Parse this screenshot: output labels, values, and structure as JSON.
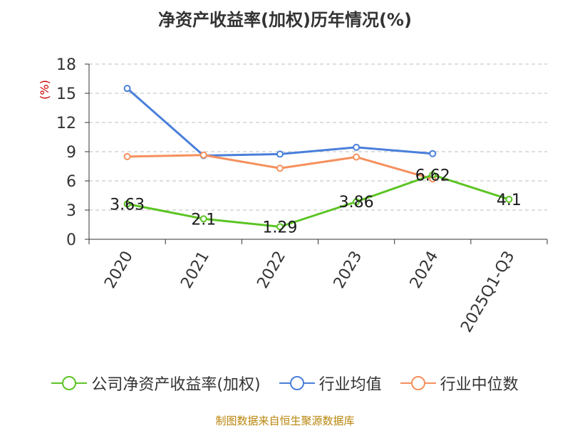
{
  "title": "净资产收益率(加权)历年情况(%)",
  "source": "制图数据来自恒生聚源数据库",
  "chart_data": {
    "type": "line",
    "title": "净资产收益率(加权)历年情况(%)",
    "ylabel": "(%)",
    "xlabel": "",
    "categories": [
      "2020",
      "2021",
      "2022",
      "2023",
      "2024",
      "2025Q1-Q3"
    ],
    "yticks": [
      0,
      3,
      6,
      9,
      12,
      15,
      18
    ],
    "ylim": [
      0,
      18
    ],
    "grid": "horizontal dashed",
    "legend_position": "bottom",
    "series": [
      {
        "name": "公司净资产收益率(加权)",
        "color": "#5cc424",
        "values": [
          3.63,
          2.1,
          1.29,
          3.86,
          6.62,
          4.1
        ],
        "labels": [
          "3.63",
          "2.1",
          "1.29",
          "3.86",
          "6.62",
          "4.1"
        ]
      },
      {
        "name": "行业均值",
        "color": "#4a7fdb",
        "values": [
          15.5,
          8.6,
          8.75,
          9.45,
          8.8,
          null
        ]
      },
      {
        "name": "行业中位数",
        "color": "#f5905e",
        "values": [
          8.5,
          8.65,
          7.3,
          8.45,
          6.2,
          null
        ]
      }
    ]
  }
}
